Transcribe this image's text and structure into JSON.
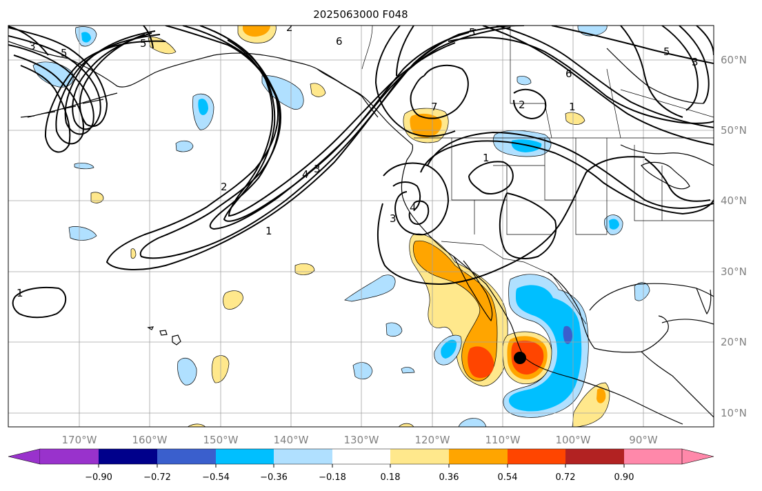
{
  "title": "2025063000 F048",
  "lon_labels": [
    "170°W",
    "160°W",
    "150°W",
    "140°W",
    "130°W",
    "120°W",
    "110°W",
    "100°W",
    "90°W"
  ],
  "lat_labels": [
    "60°N",
    "50°N",
    "40°N",
    "30°N",
    "20°N",
    "10°N"
  ],
  "colorbar": {
    "tick_labels": [
      "−0.90",
      "−0.72",
      "−0.54",
      "−0.36",
      "−0.18",
      "0.18",
      "0.36",
      "0.54",
      "0.72",
      "0.90"
    ],
    "colors": [
      "#9932cc",
      "#00008b",
      "#3a5fcd",
      "#00bfff",
      "#b0e0ff",
      "#ffffff",
      "#ffe88c",
      "#ffa500",
      "#ff4500",
      "#b22222",
      "#ff88aa"
    ]
  },
  "contour_labels": [
    "3",
    "5",
    "2",
    "5",
    "6",
    "5",
    "6",
    "7",
    "2",
    "3",
    "5",
    "1",
    "4",
    "3",
    "2",
    "1",
    "1",
    "3",
    "4",
    "1"
  ],
  "marker": "storm-center"
}
